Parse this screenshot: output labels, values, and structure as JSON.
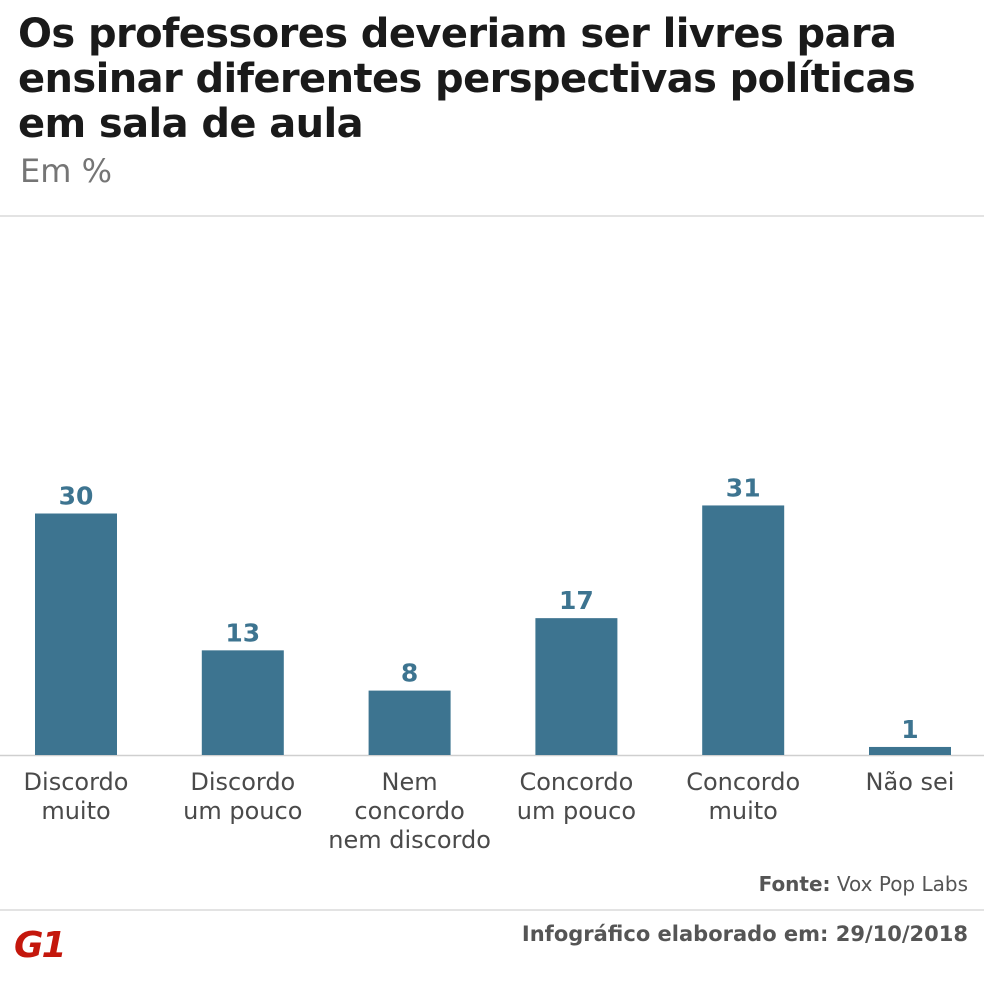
{
  "header": {
    "title": "Os professores deveriam ser livres para ensinar diferentes perspectivas políticas em sala de aula",
    "subtitle": "Em %"
  },
  "chart_data": {
    "type": "bar",
    "categories": [
      "Discordo muito",
      "Discordo um pouco",
      "Nem concordo nem discordo",
      "Concordo um pouco",
      "Concordo muito",
      "Não sei"
    ],
    "category_lines": [
      [
        "Discordo",
        "muito"
      ],
      [
        "Discordo",
        "um pouco"
      ],
      [
        "Nem",
        "concordo",
        "nem discordo"
      ],
      [
        "Concordo",
        "um pouco"
      ],
      [
        "Concordo",
        "muito"
      ],
      [
        "Não sei"
      ]
    ],
    "values": [
      30,
      13,
      8,
      17,
      31,
      1
    ],
    "title": "Os professores deveriam ser livres para ensinar diferentes perspectivas políticas em sala de aula",
    "subtitle": "Em %",
    "bar_color": "#3d7490",
    "label_color": "#3d7490",
    "grid": false
  },
  "footer": {
    "source_label": "Fonte:",
    "source_value": "Vox Pop Labs",
    "note": "Infográfico elaborado em: 29/10/2018",
    "logo": "G1",
    "logo_color": "#c4170c"
  }
}
